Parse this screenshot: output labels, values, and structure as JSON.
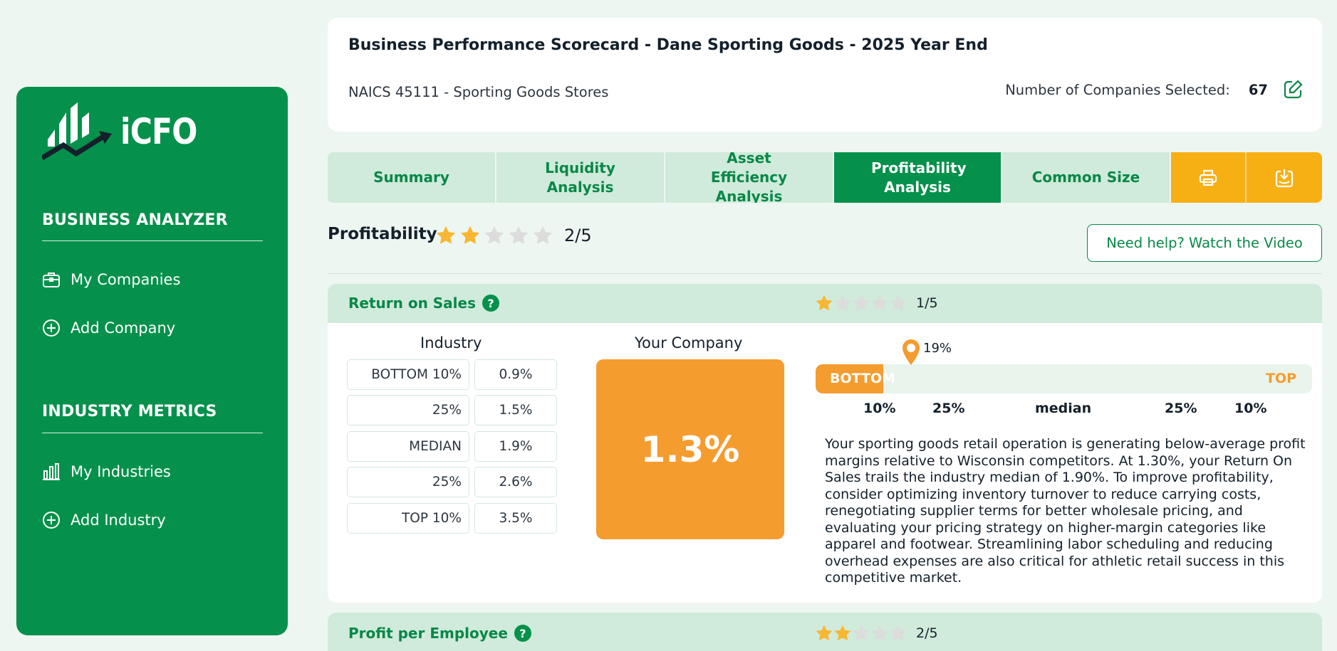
{
  "sidebar": {
    "logo_text": "iCFO",
    "business_heading": "BUSINESS ANALYZER",
    "business_items": [
      {
        "label": "My Companies",
        "icon": "briefcase-icon"
      },
      {
        "label": "Add Company",
        "icon": "plus-circle-icon"
      }
    ],
    "industry_heading": "INDUSTRY METRICS",
    "industry_items": [
      {
        "label": "My Industries",
        "icon": "bar-chart-icon"
      },
      {
        "label": "Add Industry",
        "icon": "plus-circle-icon"
      }
    ]
  },
  "header": {
    "title": "Business Performance Scorecard - Dane Sporting Goods - 2025 Year End",
    "naics": "NAICS 45111 - Sporting Goods Stores",
    "companies_label": "Number of Companies Selected:",
    "companies_count": "67"
  },
  "tabs": [
    {
      "label": "Summary",
      "active": false
    },
    {
      "label": "Liquidity Analysis",
      "active": false
    },
    {
      "label": "Asset Efficiency Analysis",
      "active": false
    },
    {
      "label": "Profitability Analysis",
      "active": true
    },
    {
      "label": "Common Size",
      "active": false
    }
  ],
  "tab_actions": [
    "printer-icon",
    "download-icon"
  ],
  "profitability": {
    "title": "Profitability",
    "stars": 2,
    "max_stars": 5,
    "score": "2/5",
    "help_button": "Need help? Watch the Video"
  },
  "metrics": [
    {
      "name": "Return on Sales",
      "stars": 1,
      "score": "1/5",
      "industry_label": "Industry",
      "industry": [
        {
          "label": "BOTTOM 10%",
          "value": "0.9%"
        },
        {
          "label": "25%",
          "value": "1.5%"
        },
        {
          "label": "MEDIAN",
          "value": "1.9%"
        },
        {
          "label": "25%",
          "value": "2.6%"
        },
        {
          "label": "TOP 10%",
          "value": "3.5%"
        }
      ],
      "your_company_label": "Your Company",
      "your_value": "1.3%",
      "gauge": {
        "percentile": "19%",
        "percentile_value": 0.19,
        "bottom_label": "BOTTOM",
        "top_label": "TOP",
        "scale": [
          "10%",
          "25%",
          "median",
          "25%",
          "10%"
        ]
      },
      "description": "Your sporting goods retail operation is generating below-average profit margins relative to Wisconsin competitors. At 1.30%, your Return On Sales trails the industry median of 1.90%. To improve profitability, consider optimizing inventory turnover to reduce carrying costs, renegotiating supplier terms for better wholesale pricing, and evaluating your pricing strategy on higher-margin categories like apparel and footwear. Streamlining labor scheduling and reducing overhead expenses are also critical for athletic retail success in this competitive market."
    },
    {
      "name": "Profit per Employee",
      "stars": 2,
      "score": "2/5"
    }
  ],
  "colors": {
    "brand_green": "#05914b",
    "light_green": "#d0eadb",
    "orange": "#f59c2f",
    "star_gold": "#f7b733",
    "action_yellow": "#f7b014"
  }
}
